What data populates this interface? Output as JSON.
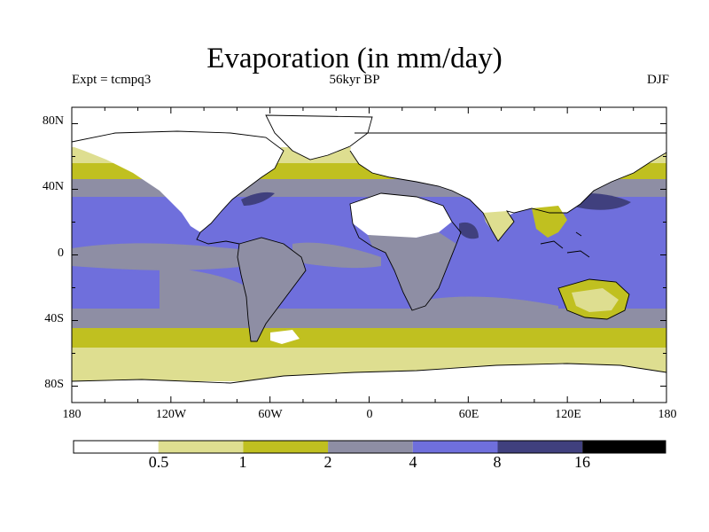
{
  "map": {
    "title": "Evaporation (in mm/day)",
    "experiment": "Expt = tcmpq3",
    "period": "56kyr BP",
    "season": "DJF",
    "lat_ticks": [
      "80N",
      "40N",
      "0",
      "40S",
      "80S"
    ],
    "lon_ticks": [
      "180",
      "120W",
      "60W",
      "0",
      "60E",
      "120E",
      "180"
    ],
    "lat_range": [
      -90,
      90
    ],
    "lon_range": [
      -180,
      180
    ],
    "colors": {
      "c0": "#ffffff",
      "c1": "#dede90",
      "c2": "#c0c020",
      "c3": "#8e8ea4",
      "c4": "#6f6fdc",
      "c5": "#40407e",
      "c6": "#000000"
    }
  },
  "colorbar": {
    "labels": [
      "0.5",
      "1",
      "2",
      "4",
      "8",
      "16"
    ]
  }
}
